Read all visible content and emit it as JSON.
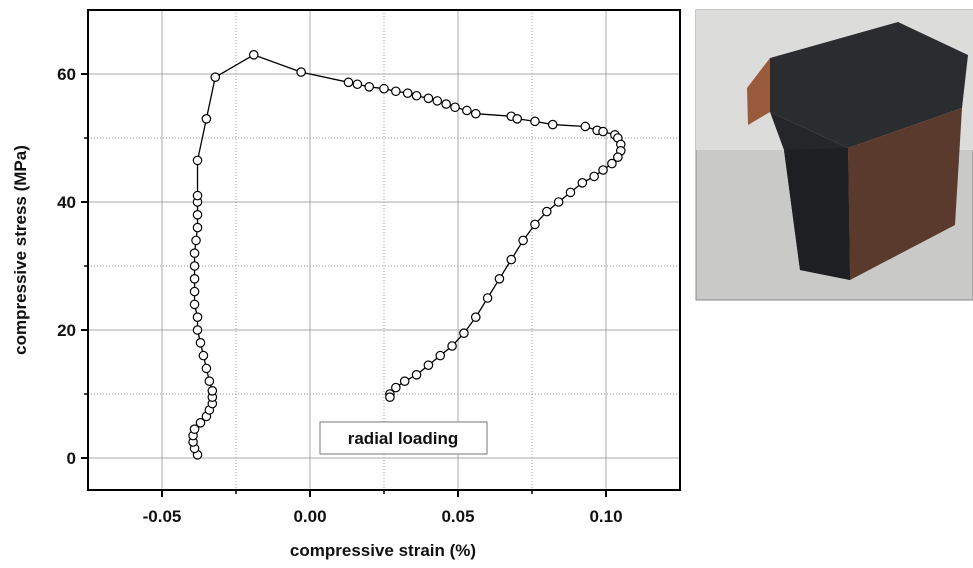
{
  "chart_data": {
    "type": "line",
    "markers": "circle",
    "color": "#000000",
    "grid": true,
    "xlabel": "compressive strain (%)",
    "ylabel": "compressive stress (MPa)",
    "annotation": "radial loading",
    "xlim": [
      -0.075,
      0.125
    ],
    "ylim": [
      -5,
      70
    ],
    "xticks": [
      -0.05,
      {
        "value": 0,
        "label": "0.00"
      },
      0.05,
      {
        "value": 0.1,
        "label": "0.10"
      }
    ],
    "yticks": [
      0,
      20,
      40,
      60
    ],
    "xminor": [
      -0.025,
      0.025,
      0.075
    ],
    "yminor": [
      10,
      30,
      50
    ],
    "x": [
      -0.038,
      -0.039,
      -0.0395,
      -0.0395,
      -0.039,
      -0.037,
      -0.035,
      -0.034,
      -0.033,
      -0.033,
      -0.033,
      -0.034,
      -0.035,
      -0.036,
      -0.037,
      -0.038,
      -0.038,
      -0.039,
      -0.039,
      -0.039,
      -0.039,
      -0.039,
      -0.0385,
      -0.038,
      -0.038,
      -0.038,
      -0.038,
      -0.038,
      -0.035,
      -0.032,
      -0.019,
      -0.003,
      0.013,
      0.016,
      0.02,
      0.025,
      0.029,
      0.033,
      0.036,
      0.04,
      0.043,
      0.046,
      0.049,
      0.053,
      0.056,
      0.068,
      0.07,
      0.076,
      0.082,
      0.093,
      0.097,
      0.099,
      0.103,
      0.104,
      0.105,
      0.105,
      0.104,
      0.102,
      0.099,
      0.096,
      0.092,
      0.088,
      0.084,
      0.08,
      0.076,
      0.072,
      0.068,
      0.064,
      0.06,
      0.056,
      0.052,
      0.048,
      0.044,
      0.04,
      0.036,
      0.032,
      0.029,
      0.027,
      0.027
    ],
    "values": [
      0.5,
      1.5,
      2.5,
      3.5,
      4.5,
      5.5,
      6.5,
      7.5,
      8.5,
      9.5,
      10.5,
      12,
      14,
      16,
      18,
      20,
      22,
      24,
      26,
      28,
      30,
      32,
      34,
      36,
      38,
      40,
      41,
      46.5,
      53,
      59.5,
      63,
      60.3,
      58.7,
      58.4,
      58,
      57.7,
      57.3,
      57,
      56.6,
      56.2,
      55.8,
      55.3,
      54.8,
      54.3,
      53.8,
      53.4,
      53,
      52.6,
      52.1,
      51.8,
      51.2,
      51,
      50.5,
      50,
      49,
      48,
      47,
      46,
      45,
      44,
      43,
      41.5,
      40,
      38.5,
      36.5,
      34,
      31,
      28,
      25,
      22,
      19.5,
      17.5,
      16,
      14.5,
      13,
      12,
      11,
      10,
      9.5
    ]
  }
}
